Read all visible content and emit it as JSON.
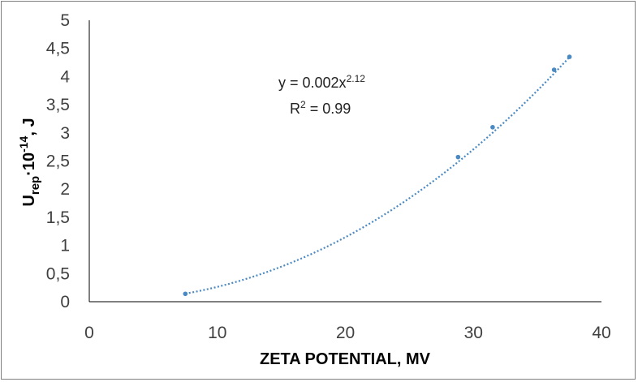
{
  "chart_data": {
    "type": "scatter",
    "title": "",
    "xlabel": "ZETA POTENTIAL, MV",
    "ylabel": {
      "main": "U",
      "sub": "rep",
      "middle": "·10",
      "sup": "-14",
      "end": ", J"
    },
    "xlim": [
      0,
      40
    ],
    "ylim": [
      0,
      5
    ],
    "xticks": [
      0,
      10,
      20,
      30,
      40
    ],
    "xtick_labels": [
      "0",
      "10",
      "20",
      "30",
      "40"
    ],
    "yticks": [
      0,
      0.5,
      1,
      1.5,
      2,
      2.5,
      3,
      3.5,
      4,
      4.5,
      5
    ],
    "ytick_labels": [
      "0",
      "0,5",
      "1",
      "1,5",
      "2",
      "2,5",
      "3",
      "3,5",
      "4",
      "4,5",
      "5"
    ],
    "grid": false,
    "series": [
      {
        "name": "data",
        "color": "#4a89c2",
        "x": [
          7.5,
          28.8,
          31.5,
          36.3,
          37.5
        ],
        "y": [
          0.14,
          2.57,
          3.1,
          4.12,
          4.35
        ]
      }
    ],
    "trendline": {
      "type": "power",
      "coefficient": 0.002,
      "exponent": 2.12,
      "x_range": [
        7.5,
        37.5
      ],
      "color": "#4a89c2"
    },
    "annotation": {
      "equation_prefix": "y = 0.002x",
      "equation_exponent": "2.12",
      "r2_prefix": "R",
      "r2_sup": "2",
      "r2_value": " = 0.99"
    }
  }
}
